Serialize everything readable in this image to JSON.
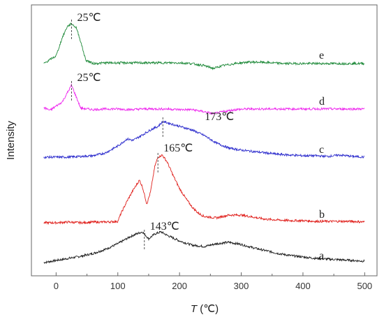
{
  "chart_data": {
    "type": "line",
    "title": "",
    "xlabel_symbol": "T",
    "xlabel_unit": "(℃)",
    "ylabel": "Intensity",
    "xlim": [
      -40,
      520
    ],
    "xticks": [
      0,
      100,
      200,
      300,
      400,
      500
    ],
    "grid": false,
    "legend": "none",
    "series": [
      {
        "label": "a",
        "color": "#1a1a1a",
        "points": [
          [
            -20,
            3
          ],
          [
            0,
            6
          ],
          [
            20,
            9
          ],
          [
            40,
            12
          ],
          [
            60,
            16
          ],
          [
            80,
            22
          ],
          [
            100,
            30
          ],
          [
            110,
            35
          ],
          [
            120,
            40
          ],
          [
            130,
            44
          ],
          [
            140,
            47
          ],
          [
            143,
            44
          ],
          [
            150,
            37
          ],
          [
            160,
            44
          ],
          [
            170,
            47
          ],
          [
            180,
            42
          ],
          [
            200,
            34
          ],
          [
            220,
            28
          ],
          [
            240,
            26
          ],
          [
            260,
            30
          ],
          [
            280,
            32
          ],
          [
            300,
            29
          ],
          [
            320,
            24
          ],
          [
            340,
            20
          ],
          [
            360,
            16
          ],
          [
            380,
            13
          ],
          [
            400,
            11
          ],
          [
            420,
            9
          ],
          [
            440,
            8
          ],
          [
            460,
            7
          ],
          [
            480,
            6
          ],
          [
            500,
            5
          ]
        ],
        "peak": {
          "x": 143,
          "label": "143℃"
        }
      },
      {
        "label": "b",
        "color": "#e0201c",
        "points": [
          [
            -20,
            1
          ],
          [
            0,
            1
          ],
          [
            20,
            2
          ],
          [
            40,
            1
          ],
          [
            60,
            2
          ],
          [
            80,
            2
          ],
          [
            100,
            3
          ],
          [
            105,
            14
          ],
          [
            115,
            32
          ],
          [
            125,
            48
          ],
          [
            135,
            62
          ],
          [
            140,
            52
          ],
          [
            147,
            28
          ],
          [
            153,
            45
          ],
          [
            160,
            82
          ],
          [
            165,
            95
          ],
          [
            172,
            98
          ],
          [
            180,
            88
          ],
          [
            190,
            68
          ],
          [
            200,
            50
          ],
          [
            210,
            36
          ],
          [
            220,
            24
          ],
          [
            230,
            15
          ],
          [
            240,
            10
          ],
          [
            260,
            8
          ],
          [
            280,
            12
          ],
          [
            300,
            12
          ],
          [
            320,
            9
          ],
          [
            340,
            6
          ],
          [
            360,
            5
          ],
          [
            380,
            4
          ],
          [
            400,
            4
          ],
          [
            420,
            3
          ],
          [
            440,
            3
          ],
          [
            460,
            3
          ],
          [
            480,
            3
          ],
          [
            500,
            2
          ]
        ],
        "peak": {
          "x": 165,
          "label": "165℃"
        }
      },
      {
        "label": "c",
        "color": "#2a2acc",
        "points": [
          [
            -20,
            2
          ],
          [
            0,
            2
          ],
          [
            20,
            2
          ],
          [
            40,
            3
          ],
          [
            60,
            4
          ],
          [
            80,
            8
          ],
          [
            100,
            18
          ],
          [
            115,
            28
          ],
          [
            125,
            26
          ],
          [
            140,
            34
          ],
          [
            155,
            42
          ],
          [
            165,
            46
          ],
          [
            173,
            53
          ],
          [
            185,
            50
          ],
          [
            200,
            46
          ],
          [
            220,
            41
          ],
          [
            240,
            33
          ],
          [
            260,
            22
          ],
          [
            280,
            15
          ],
          [
            300,
            12
          ],
          [
            320,
            10
          ],
          [
            340,
            8
          ],
          [
            360,
            6
          ],
          [
            380,
            5
          ],
          [
            400,
            4
          ],
          [
            420,
            4
          ],
          [
            440,
            3
          ],
          [
            460,
            5
          ],
          [
            480,
            3
          ],
          [
            500,
            2
          ]
        ],
        "peak": {
          "x": 173,
          "label": "173℃"
        }
      },
      {
        "label": "d",
        "color": "#ee28ee",
        "points": [
          [
            -20,
            4
          ],
          [
            -10,
            0
          ],
          [
            0,
            6
          ],
          [
            10,
            12
          ],
          [
            20,
            28
          ],
          [
            25,
            36
          ],
          [
            30,
            25
          ],
          [
            40,
            3
          ],
          [
            60,
            1
          ],
          [
            80,
            2
          ],
          [
            100,
            2
          ],
          [
            120,
            1
          ],
          [
            140,
            2
          ],
          [
            160,
            2
          ],
          [
            180,
            2
          ],
          [
            200,
            1
          ],
          [
            220,
            1
          ],
          [
            240,
            -2
          ],
          [
            255,
            -5
          ],
          [
            270,
            -2
          ],
          [
            290,
            1
          ],
          [
            310,
            2
          ],
          [
            330,
            2
          ],
          [
            350,
            2
          ],
          [
            380,
            2
          ],
          [
            400,
            2
          ],
          [
            420,
            2
          ],
          [
            440,
            2
          ],
          [
            460,
            2
          ],
          [
            480,
            2
          ],
          [
            500,
            2
          ]
        ],
        "peak": {
          "x": 25,
          "label": "25℃"
        }
      },
      {
        "label": "e",
        "color": "#1f8a3a",
        "points": [
          [
            -20,
            1
          ],
          [
            0,
            12
          ],
          [
            10,
            38
          ],
          [
            18,
            54
          ],
          [
            25,
            58
          ],
          [
            33,
            52
          ],
          [
            40,
            32
          ],
          [
            48,
            6
          ],
          [
            60,
            1
          ],
          [
            80,
            2
          ],
          [
            100,
            2
          ],
          [
            120,
            2
          ],
          [
            140,
            2
          ],
          [
            160,
            2
          ],
          [
            180,
            2
          ],
          [
            200,
            2
          ],
          [
            220,
            1
          ],
          [
            240,
            -2
          ],
          [
            255,
            -6
          ],
          [
            270,
            -2
          ],
          [
            290,
            1
          ],
          [
            310,
            3
          ],
          [
            330,
            3
          ],
          [
            350,
            2
          ],
          [
            370,
            1
          ],
          [
            390,
            1
          ],
          [
            410,
            1
          ],
          [
            430,
            1
          ],
          [
            450,
            1
          ],
          [
            470,
            1
          ],
          [
            500,
            1
          ]
        ],
        "peak": {
          "x": 25,
          "label": "25℃"
        }
      }
    ]
  }
}
